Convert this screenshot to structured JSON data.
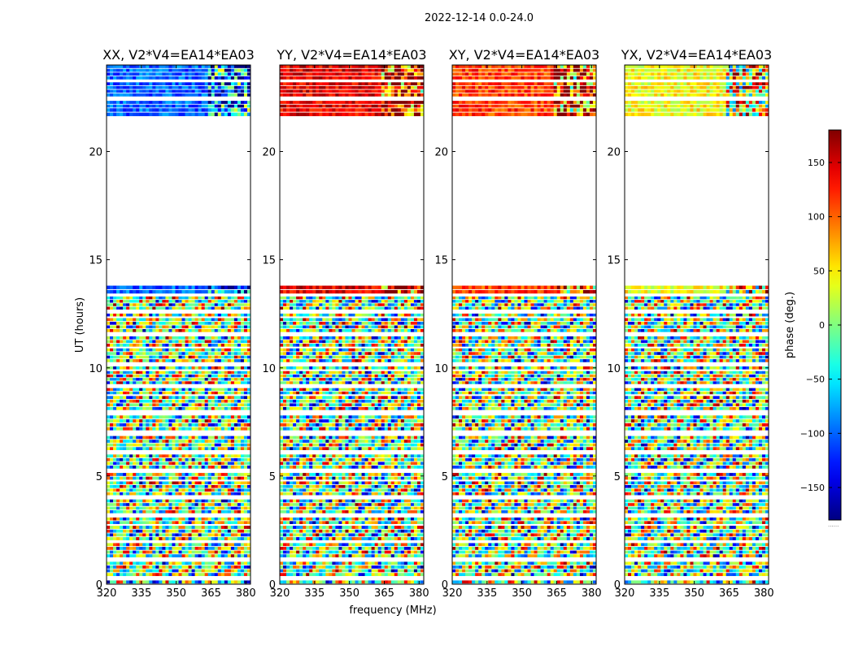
{
  "suptitle": "2022-12-14 0.0-24.0",
  "chart_data": {
    "type": "heatmap",
    "xlabel": "frequency (MHz)",
    "ylabel": "UT (hours)",
    "xlim": [
      320,
      382
    ],
    "ylim": [
      0,
      24
    ],
    "xticks": [
      320,
      335,
      350,
      365,
      380
    ],
    "yticks": [
      0,
      5,
      10,
      15,
      20
    ],
    "colorbar": {
      "label": "phase (deg.)",
      "range": [
        -180,
        180
      ],
      "ticks": [
        -150,
        -100,
        -50,
        0,
        50,
        100,
        150
      ],
      "colormap": "jet",
      "footnote": "......"
    },
    "panels": [
      {
        "title": "XX, V2*V4=EA14*EA03",
        "polarization": "XX"
      },
      {
        "title": "YY, V2*V4=EA14*EA03",
        "polarization": "YY"
      },
      {
        "title": "XY, V2*V4=EA14*EA03",
        "polarization": "XY"
      },
      {
        "title": "YX, V2*V4=EA14*EA03",
        "polarization": "YX"
      }
    ],
    "data_segments_ut_hours": [
      [
        0.0,
        1.9
      ],
      [
        2.0,
        2.7
      ],
      [
        2.75,
        4.75
      ],
      [
        4.8,
        6.85
      ],
      [
        6.9,
        7.8
      ],
      [
        7.85,
        8.7
      ],
      [
        8.75,
        9.85
      ],
      [
        9.9,
        10.9
      ],
      [
        10.95,
        12.3
      ],
      [
        12.35,
        13.3
      ],
      [
        13.4,
        13.8
      ],
      [
        21.6,
        22.0
      ],
      [
        22.0,
        23.2
      ],
      [
        23.3,
        24.0
      ]
    ],
    "gap_ut_hours": [
      13.8,
      21.6
    ]
  }
}
